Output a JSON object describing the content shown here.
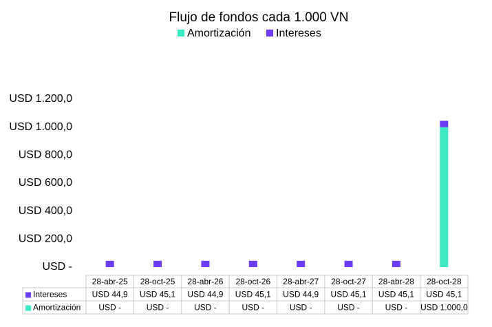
{
  "chart_data": {
    "type": "stacked_bar",
    "title": "Flujo de fondos cada 1.000 VN",
    "categories": [
      "28-abr-25",
      "28-oct-25",
      "28-abr-26",
      "28-oct-26",
      "28-abr-27",
      "28-oct-27",
      "28-abr-28",
      "28-oct-28"
    ],
    "series": [
      {
        "name": "Amortización",
        "color": "#3ee8c3",
        "values": [
          0,
          0,
          0,
          0,
          0,
          0,
          0,
          1000
        ],
        "value_labels": [
          "USD -",
          "USD -",
          "USD -",
          "USD -",
          "USD -",
          "USD -",
          "USD -",
          "USD 1.000,0"
        ]
      },
      {
        "name": "Intereses",
        "color": "#6b3cf4",
        "values": [
          44.9,
          45.1,
          44.9,
          45.1,
          44.9,
          45.1,
          45.1,
          45.1
        ],
        "value_labels": [
          "USD 44,9",
          "USD 45,1",
          "USD 44,9",
          "USD 45,1",
          "USD 44,9",
          "USD 45,1",
          "USD 45,1",
          "USD 45,1"
        ]
      }
    ],
    "ylim": [
      0,
      1200
    ],
    "yticks": [
      {
        "value": 0,
        "label": "USD -"
      },
      {
        "value": 200,
        "label": "USD 200,0"
      },
      {
        "value": 400,
        "label": "USD 400,0"
      },
      {
        "value": 600,
        "label": "USD 600,0"
      },
      {
        "value": 800,
        "label": "USD 800,0"
      },
      {
        "value": 1000,
        "label": "USD 1.000,0"
      },
      {
        "value": 1200,
        "label": "USD 1.200,0"
      }
    ],
    "legend": "top",
    "grid": false
  }
}
